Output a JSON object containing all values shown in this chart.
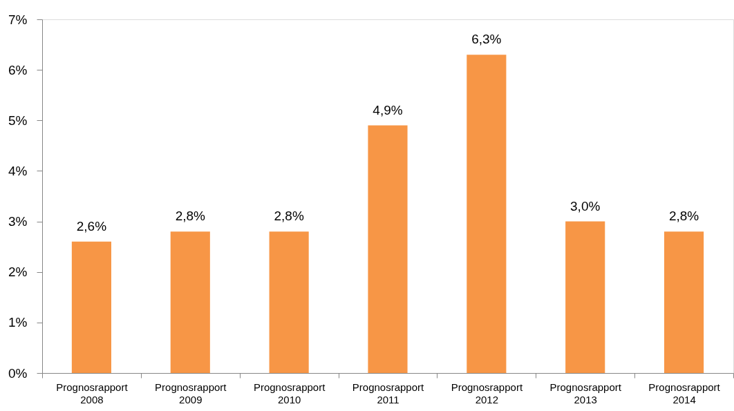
{
  "chart_data": {
    "type": "bar",
    "categories": [
      "Prognosrapport 2008",
      "Prognosrapport 2009",
      "Prognosrapport 2010",
      "Prognosrapport 2011",
      "Prognosrapport 2012",
      "Prognosrapport 2013",
      "Prognosrapport 2014"
    ],
    "values": [
      2.6,
      2.8,
      2.8,
      4.9,
      6.3,
      3.0,
      2.8
    ],
    "value_labels": [
      "2,6%",
      "2,8%",
      "2,8%",
      "4,9%",
      "6,3%",
      "3,0%",
      "2,8%"
    ],
    "color": "#f79646",
    "ylim": [
      0,
      7
    ],
    "yticks": [
      {
        "value": 0,
        "label": "0%"
      },
      {
        "value": 1,
        "label": "1%"
      },
      {
        "value": 2,
        "label": "2%"
      },
      {
        "value": 3,
        "label": "3%"
      },
      {
        "value": 4,
        "label": "4%"
      },
      {
        "value": 5,
        "label": "5%"
      },
      {
        "value": 6,
        "label": "6%"
      },
      {
        "value": 7,
        "label": "7%"
      }
    ],
    "grid": false
  }
}
